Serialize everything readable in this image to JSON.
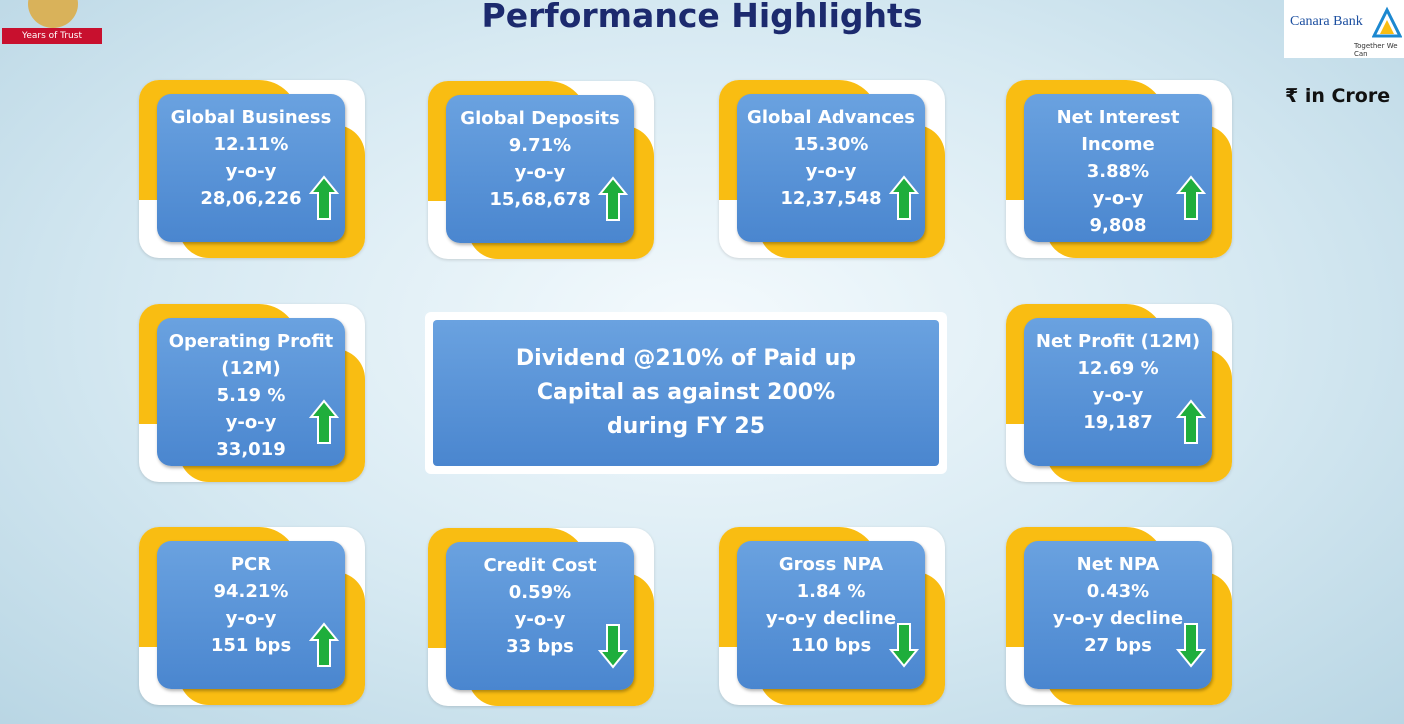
{
  "title": "Performance Highlights",
  "unit_note": "₹ in Crore",
  "left_logo": {
    "ribbon": "Years of Trust"
  },
  "right_logo": {
    "name": "Canara Bank",
    "tagline": "Together We Can"
  },
  "cards": [
    {
      "title": "Global Business",
      "lines": [
        "12.11%",
        "y-o-y",
        "28,06,226"
      ],
      "arrow": "up"
    },
    {
      "title": "Global Deposits",
      "lines": [
        "9.71%",
        "y-o-y",
        "15,68,678"
      ],
      "arrow": "up"
    },
    {
      "title": "Global Advances",
      "lines": [
        "15.30%",
        "y-o-y",
        "12,37,548"
      ],
      "arrow": "up"
    },
    {
      "title": "Net Interest Income",
      "lines": [
        "3.88%",
        "y-o-y",
        "9,808"
      ],
      "arrow": "up"
    },
    {
      "title": "Operating Profit (12M)",
      "lines": [
        "5.19 %",
        "y-o-y",
        "33,019"
      ],
      "arrow": "up"
    },
    {
      "title": "Net Profit (12M)",
      "lines": [
        "12.69 %",
        "y-o-y",
        "19,187"
      ],
      "arrow": "up"
    },
    {
      "title": "PCR",
      "lines": [
        "94.21%",
        "y-o-y",
        "151 bps"
      ],
      "arrow": "up"
    },
    {
      "title": "Credit Cost",
      "lines": [
        "0.59%",
        "y-o-y",
        "33 bps"
      ],
      "arrow": "down"
    },
    {
      "title": "Gross NPA",
      "lines": [
        "1.84 %",
        "y-o-y decline",
        "110 bps"
      ],
      "arrow": "down"
    },
    {
      "title": "Net NPA",
      "lines": [
        "0.43%",
        "y-o-y decline",
        "27 bps"
      ],
      "arrow": "down"
    }
  ],
  "dividend": "Dividend @210% of Paid up Capital as against 200% during FY 25"
}
